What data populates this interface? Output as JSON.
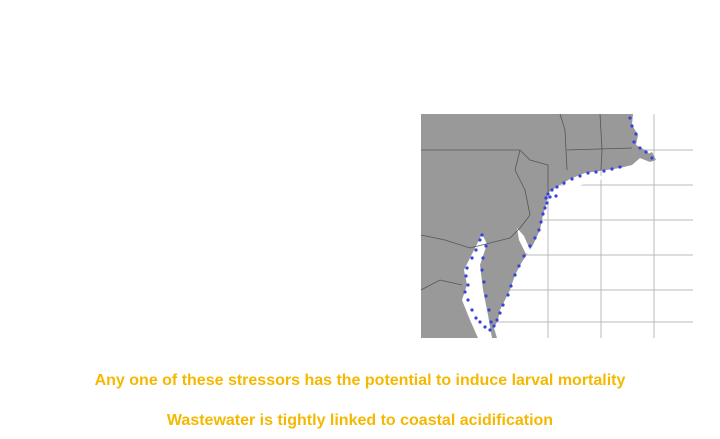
{
  "caption": {
    "line1": "Any one of these stressors has the potential to induce larval mortality",
    "line2": "Wastewater is tightly linked to coastal acidification"
  }
}
